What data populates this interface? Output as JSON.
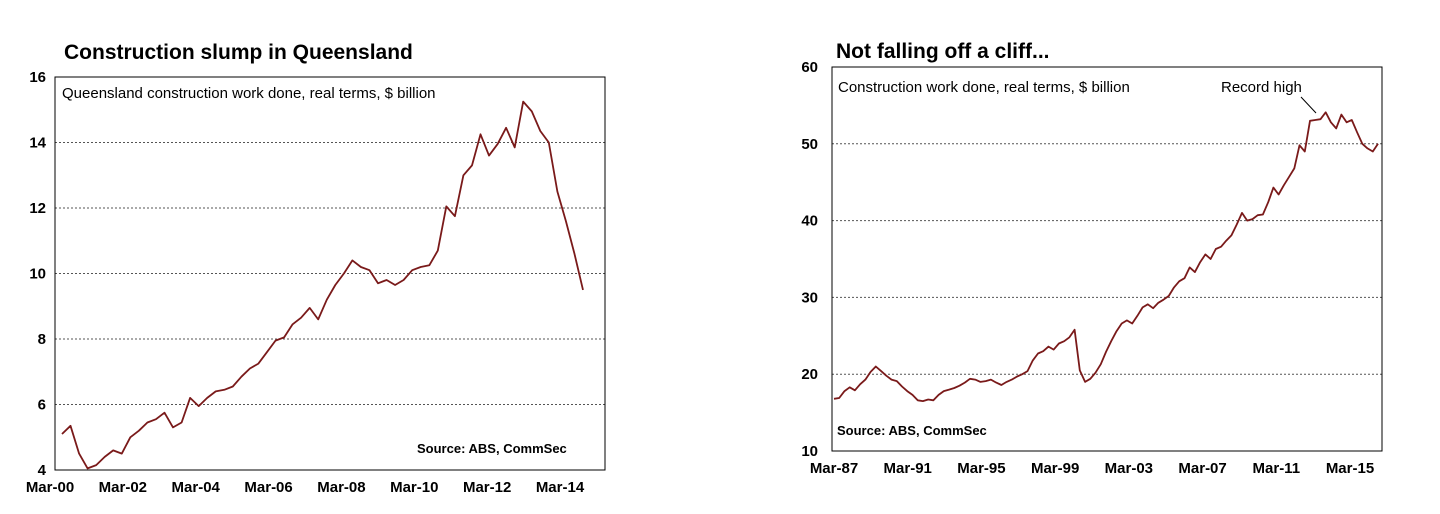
{
  "colors": {
    "series": "#7a1a1a"
  },
  "chart_data": [
    {
      "type": "line",
      "title": "Construction slump in Queensland",
      "subtitle": "Queensland construction work done, real terms, $ billion",
      "source": "Source: ABS, CommSec",
      "ylim": [
        4,
        16
      ],
      "yticks": [
        4,
        6,
        8,
        10,
        12,
        14,
        16
      ],
      "grid": true,
      "x_tick_labels": [
        "Mar-00",
        "Mar-02",
        "Mar-04",
        "Mar-06",
        "Mar-08",
        "Mar-10",
        "Mar-12",
        "Mar-14"
      ],
      "series": [
        {
          "values": [
            5.1,
            5.35,
            4.5,
            4.05,
            4.15,
            4.4,
            4.6,
            4.5,
            5.0,
            5.2,
            5.45,
            5.55,
            5.75,
            5.3,
            5.45,
            6.2,
            5.95,
            6.2,
            6.4,
            6.45,
            6.55,
            6.85,
            7.1,
            7.25,
            7.6,
            7.95,
            8.05,
            8.45,
            8.65,
            8.95,
            8.6,
            9.2,
            9.65,
            10.0,
            10.4,
            10.2,
            10.1,
            9.7,
            9.8,
            9.65,
            9.8,
            10.1,
            10.2,
            10.25,
            10.7,
            12.05,
            11.75,
            13.0,
            13.3,
            14.25,
            13.6,
            13.95,
            14.45,
            13.85,
            15.25,
            14.95,
            14.35,
            14.0,
            12.5,
            11.6,
            10.6,
            9.5
          ]
        }
      ]
    },
    {
      "type": "line",
      "title": "Not falling off a cliff...",
      "subtitle": "Construction work done, real terms, $ billion",
      "source": "Source: ABS, CommSec",
      "annotation": "Record high",
      "ylim": [
        10,
        60
      ],
      "yticks": [
        10,
        20,
        30,
        40,
        50,
        60
      ],
      "grid": true,
      "x_tick_labels": [
        "Mar-87",
        "Mar-91",
        "Mar-95",
        "Mar-99",
        "Mar-03",
        "Mar-07",
        "Mar-11",
        "Mar-15"
      ],
      "series": [
        {
          "values": [
            16.8,
            16.9,
            17.8,
            18.3,
            17.9,
            18.7,
            19.3,
            20.3,
            21.0,
            20.4,
            19.8,
            19.3,
            19.1,
            18.4,
            17.8,
            17.3,
            16.6,
            16.5,
            16.7,
            16.6,
            17.3,
            17.8,
            18.0,
            18.2,
            18.5,
            18.9,
            19.4,
            19.3,
            19.0,
            19.1,
            19.3,
            18.9,
            18.6,
            19.0,
            19.3,
            19.7,
            20.0,
            20.4,
            21.8,
            22.7,
            23.0,
            23.6,
            23.2,
            24.0,
            24.3,
            24.8,
            25.8,
            20.5,
            19.0,
            19.4,
            20.2,
            21.3,
            22.9,
            24.3,
            25.6,
            26.6,
            27.0,
            26.6,
            27.6,
            28.7,
            29.1,
            28.6,
            29.3,
            29.7,
            30.2,
            31.3,
            32.1,
            32.5,
            33.9,
            33.3,
            34.6,
            35.6,
            35.0,
            36.3,
            36.6,
            37.4,
            38.1,
            39.5,
            41.0,
            40.0,
            40.2,
            40.7,
            40.8,
            42.4,
            44.3,
            43.4,
            44.6,
            45.7,
            46.8,
            49.8,
            49.0,
            53.0,
            53.1,
            53.2,
            54.1,
            52.8,
            52.0,
            53.8,
            52.8,
            53.1,
            51.5,
            50.0,
            49.4,
            49.0,
            50.0
          ]
        }
      ]
    }
  ]
}
